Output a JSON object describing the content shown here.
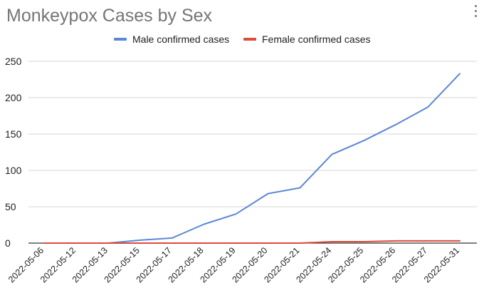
{
  "chart_data": {
    "type": "line",
    "title": "Monkeypox Cases by Sex",
    "categories": [
      "2022-05-06",
      "2022-05-12",
      "2022-05-13",
      "2022-05-15",
      "2022-05-17",
      "2022-05-18",
      "2022-05-19",
      "2022-05-20",
      "2022-05-21",
      "2022-05-24",
      "2022-05-25",
      "2022-05-26",
      "2022-05-27",
      "2022-05-31"
    ],
    "series": [
      {
        "name": "Male confirmed cases",
        "color": "#5b87d6",
        "values": [
          0,
          0,
          0,
          4,
          7,
          26,
          40,
          68,
          76,
          122,
          141,
          163,
          187,
          233
        ]
      },
      {
        "name": "Female confirmed cases",
        "color": "#dc4b3c",
        "values": [
          0,
          0,
          0,
          0,
          0,
          0,
          0,
          0,
          0,
          2,
          2,
          3,
          3,
          3
        ]
      }
    ],
    "yticks": [
      0,
      50,
      100,
      150,
      200,
      250
    ],
    "ylim": [
      0,
      250
    ],
    "xlabel": "",
    "ylabel": "",
    "legend_position": "top",
    "grid": true
  },
  "icons": {
    "menu": "more-vert-icon"
  }
}
